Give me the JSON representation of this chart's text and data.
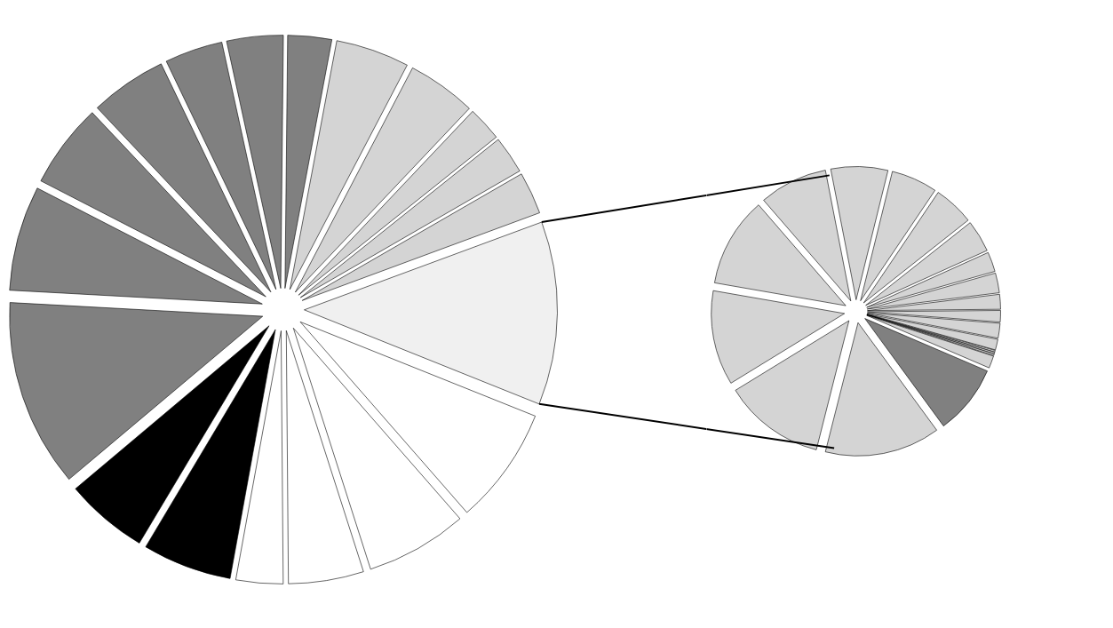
{
  "chart_data": [
    {
      "type": "pie",
      "values": [
        2.8,
        4.7,
        4.4,
        2.2,
        2.4,
        2.7,
        11.7,
        7.5,
        6.5,
        4.8,
        3.0,
        5.7,
        5.3,
        12.0,
        6.7,
        5.4,
        4.9,
        3.7,
        3.6
      ],
      "colors": [
        "#808080",
        "#d4d4d4",
        "#d4d4d4",
        "#d4d4d4",
        "#d4d4d4",
        "#d4d4d4",
        "#f0f0f0",
        "#ffffff",
        "#ffffff",
        "#ffffff",
        "#ffffff",
        "#000000",
        "#000000",
        "#808080",
        "#808080",
        "#808080",
        "#808080",
        "#808080",
        "#808080"
      ]
    },
    {
      "type": "pie",
      "values": [
        6.9,
        5.6,
        4.9,
        3.9,
        2.4,
        2.4,
        1.8,
        1.4,
        1.8,
        1.3,
        0.2,
        0.2,
        0.2,
        1.5,
        8.5,
        14.0,
        12.3,
        11.5,
        10.9,
        8.3
      ],
      "colors": [
        "#d4d4d4",
        "#d4d4d4",
        "#d4d4d4",
        "#d4d4d4",
        "#d4d4d4",
        "#d4d4d4",
        "#d4d4d4",
        "#d4d4d4",
        "#d4d4d4",
        "#d4d4d4",
        "#d4d4d4",
        "#d4d4d4",
        "#d4d4d4",
        "#d4d4d4",
        "#808080",
        "#d4d4d4",
        "#d4d4d4",
        "#d4d4d4",
        "#d4d4d4",
        "#d4d4d4"
      ]
    }
  ]
}
